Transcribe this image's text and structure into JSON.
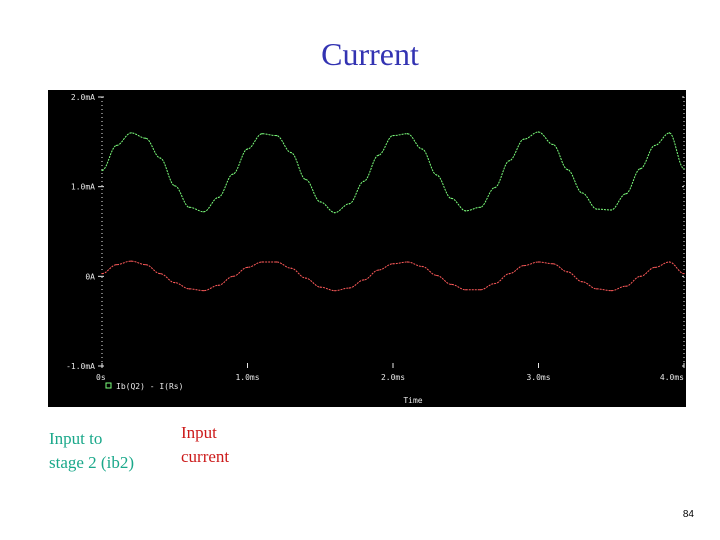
{
  "slide": {
    "title": "Current",
    "page_number": "84"
  },
  "annotations": {
    "green_label": "Input to\nstage 2 (ib2)",
    "red_label": "Input\ncurrent"
  },
  "colors": {
    "title": "#3333b2",
    "plot_background": "#000000",
    "green_trace": "#7cff7c",
    "red_trace": "#ff5a5a",
    "axis_text": "#e8e8e8",
    "green_annotation": "#1aa88a",
    "red_annotation": "#cc1a1a"
  },
  "chart_data": {
    "type": "line",
    "xlabel": "Time",
    "ylabel": "",
    "x_ticks": [
      "0s",
      "1.0ms",
      "2.0ms",
      "3.0ms",
      "4.0ms"
    ],
    "y_ticks": [
      "2.0mA",
      "1.0mA",
      "0A",
      "-1.0mA"
    ],
    "xlim_ms": [
      0,
      4.0
    ],
    "ylim_mA": [
      -1.0,
      2.0
    ],
    "grid": false,
    "legend": {
      "position": "bottom-left",
      "text": "Ib(Q2)  - I(Rs)"
    },
    "x_ms": [
      0.0,
      0.1,
      0.2,
      0.3,
      0.4,
      0.5,
      0.6,
      0.7,
      0.8,
      0.9,
      1.0,
      1.1,
      1.2,
      1.3,
      1.4,
      1.5,
      1.6,
      1.7,
      1.8,
      1.9,
      2.0,
      2.1,
      2.2,
      2.3,
      2.4,
      2.5,
      2.6,
      2.7,
      2.8,
      2.9,
      3.0,
      3.1,
      3.2,
      3.3,
      3.4,
      3.5,
      3.6,
      3.7,
      3.8,
      3.9,
      4.0
    ],
    "series": [
      {
        "legend_text": "Ib(Q2)",
        "color": "#7cff7c",
        "values": [
          1.18,
          1.46,
          1.6,
          1.54,
          1.32,
          1.01,
          0.77,
          0.72,
          0.88,
          1.14,
          1.42,
          1.59,
          1.57,
          1.38,
          1.08,
          0.83,
          0.71,
          0.81,
          1.06,
          1.35,
          1.57,
          1.59,
          1.42,
          1.13,
          0.87,
          0.73,
          0.77,
          0.99,
          1.29,
          1.53,
          1.61,
          1.47,
          1.19,
          0.93,
          0.75,
          0.74,
          0.92,
          1.2,
          1.46,
          1.6,
          1.2
        ]
      },
      {
        "legend_text": "- I(Rs)",
        "color": "#ff5a5a",
        "values": [
          0.03,
          0.13,
          0.17,
          0.13,
          0.03,
          -0.07,
          -0.14,
          -0.16,
          -0.1,
          0.0,
          0.1,
          0.16,
          0.16,
          0.09,
          -0.02,
          -0.12,
          -0.16,
          -0.13,
          -0.04,
          0.07,
          0.14,
          0.16,
          0.11,
          0.01,
          -0.09,
          -0.15,
          -0.15,
          -0.08,
          0.03,
          0.12,
          0.16,
          0.14,
          0.05,
          -0.06,
          -0.14,
          -0.16,
          -0.11,
          0.0,
          0.1,
          0.16,
          0.03
        ]
      }
    ]
  }
}
